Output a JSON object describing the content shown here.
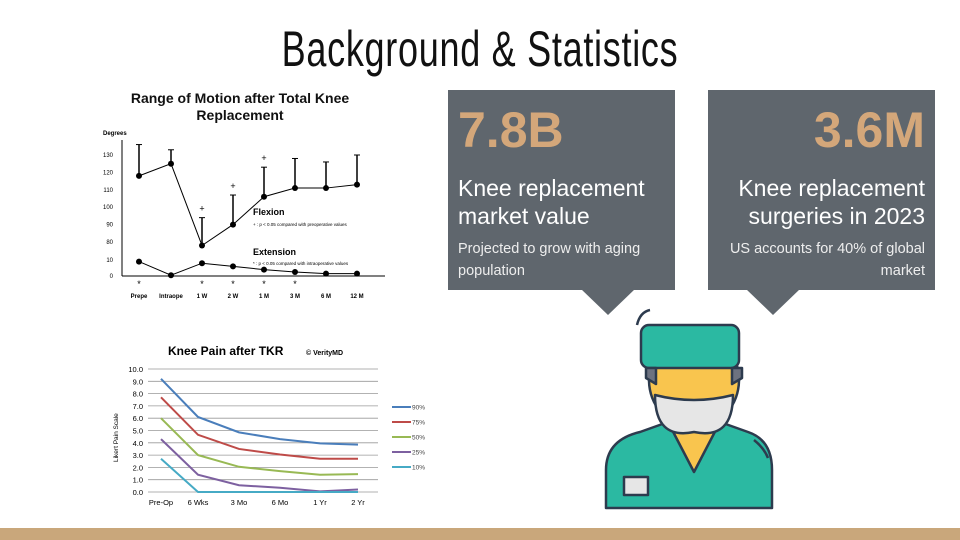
{
  "title": "Background & Statistics",
  "cards": [
    {
      "value": "7.8B",
      "label": "Knee replacement market value",
      "sub": "Projected to grow with aging population"
    },
    {
      "value": "3.6M",
      "label": "Knee replacement surgeries in 2023",
      "sub": "US accounts for 40% of global market"
    }
  ],
  "colors": {
    "card": "#5f666d",
    "accent": "#d4a77a",
    "strip": "#c9a77b",
    "scrubs": "#2bb9a2",
    "skin": "#f9c54e"
  },
  "icon": "surgeon-icon",
  "chart_data": [
    {
      "type": "line",
      "title": "Range of Motion after Total Knee Replacement",
      "ylabel": "Degrees",
      "categories": [
        "Prepe",
        "Intraope",
        "1 W",
        "2 W",
        "1 M",
        "3 M",
        "6 M",
        "12 M"
      ],
      "yticks": [
        "0",
        "10",
        "80",
        "90",
        "100",
        "110",
        "120",
        "130"
      ],
      "series": [
        {
          "name": "Flexion",
          "values": [
            118,
            125,
            78,
            90,
            106,
            111,
            111,
            113
          ],
          "error_upper": [
            136,
            133,
            94,
            107,
            123,
            128,
            126,
            130
          ],
          "note": "+ : p < 0.05 compared with preoperative values",
          "significant": [
            2,
            3,
            4
          ]
        },
        {
          "name": "Extension",
          "values": [
            9,
            0.5,
            8,
            6,
            4,
            2.5,
            1.5,
            1.5
          ],
          "note": "* : p < 0.05 compared with intraoperative values",
          "significant": [
            0,
            2,
            3,
            4,
            5
          ]
        }
      ]
    },
    {
      "type": "line",
      "title": "Knee Pain after TKR",
      "credit": "© VerityMD",
      "ylabel": "Likert Pain Scale",
      "ylim": [
        0,
        10
      ],
      "yticks": [
        "0.0",
        "1.0",
        "2.0",
        "3.0",
        "4.0",
        "5.0",
        "6.0",
        "7.0",
        "8.0",
        "9.0",
        "10.0"
      ],
      "categories": [
        "Pre-Op",
        "6 Wks",
        "3 Mo",
        "6 Mo",
        "1 Yr",
        "2 Yr"
      ],
      "legend": "right",
      "series": [
        {
          "name": "90%",
          "color": "#4a7ebb",
          "values": [
            9.2,
            6.1,
            4.85,
            4.3,
            3.95,
            3.85
          ]
        },
        {
          "name": "75%",
          "color": "#be4b48",
          "values": [
            7.7,
            4.65,
            3.5,
            3.05,
            2.7,
            2.7
          ]
        },
        {
          "name": "50%",
          "color": "#98b954",
          "values": [
            6.0,
            3.0,
            2.05,
            1.7,
            1.4,
            1.45
          ]
        },
        {
          "name": "25%",
          "color": "#7d60a0",
          "values": [
            4.3,
            1.4,
            0.55,
            0.35,
            0.05,
            0.2
          ]
        },
        {
          "name": "10%",
          "color": "#46aac5",
          "values": [
            2.7,
            0,
            0,
            0,
            0,
            0
          ]
        }
      ]
    }
  ]
}
